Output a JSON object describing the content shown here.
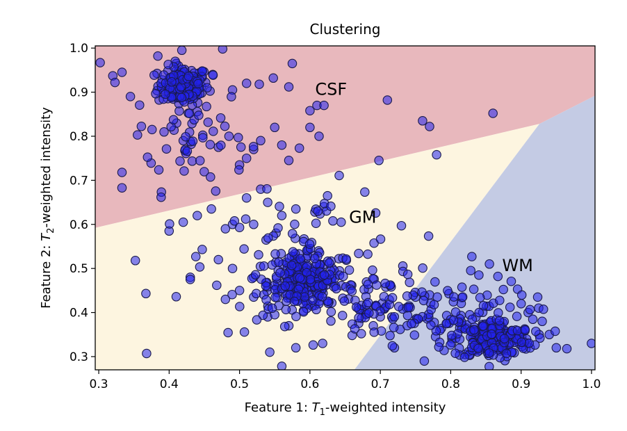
{
  "chart_data": {
    "type": "scatter",
    "title": "Clustering",
    "xlabel": {
      "prefix": "Feature 1: ",
      "symbol": "T",
      "sub": "1",
      "suffix": "-weighted intensity"
    },
    "ylabel": {
      "prefix": "Feature 2: ",
      "symbol": "T",
      "sub": "2",
      "suffix": "-weighted intensity"
    },
    "xlim": [
      0.295,
      1.005
    ],
    "ylim": [
      0.27,
      1.005
    ],
    "xticks": [
      "0.3",
      "0.4",
      "0.5",
      "0.6",
      "0.7",
      "0.8",
      "0.9",
      "1.0"
    ],
    "yticks": [
      "0.3",
      "0.4",
      "0.5",
      "0.6",
      "0.7",
      "0.8",
      "0.9",
      "1.0"
    ],
    "grid": false,
    "regions": [
      {
        "label": "CSF",
        "color": "#e8b8bd",
        "label_at": [
          0.63,
          0.905
        ],
        "polygon": [
          [
            0.295,
            0.592
          ],
          [
            0.926,
            0.828
          ],
          [
            1.005,
            0.892
          ],
          [
            1.005,
            1.005
          ],
          [
            0.295,
            1.005
          ]
        ]
      },
      {
        "label": "GM",
        "color": "#fdf5e0",
        "label_at": [
          0.675,
          0.615
        ],
        "polygon": [
          [
            0.295,
            0.27
          ],
          [
            0.663,
            0.27
          ],
          [
            0.926,
            0.828
          ],
          [
            0.295,
            0.592
          ]
        ]
      },
      {
        "label": "WM",
        "color": "#c4cbe4",
        "label_at": [
          0.895,
          0.505
        ],
        "polygon": [
          [
            0.663,
            0.27
          ],
          [
            1.005,
            0.27
          ],
          [
            1.005,
            0.892
          ],
          [
            0.926,
            0.828
          ]
        ]
      }
    ],
    "point_style": {
      "fill": "#2222ee",
      "fill_opacity": 0.55,
      "stroke": "#1a1a4a"
    },
    "clusters": [
      {
        "cx": 0.42,
        "cy": 0.915,
        "sx": 0.018,
        "sy": 0.022,
        "n": 160
      },
      {
        "cx": 0.43,
        "cy": 0.8,
        "sx": 0.04,
        "sy": 0.06,
        "n": 55
      },
      {
        "cx": 0.59,
        "cy": 0.47,
        "sx": 0.025,
        "sy": 0.03,
        "n": 230
      },
      {
        "cx": 0.6,
        "cy": 0.52,
        "sx": 0.07,
        "sy": 0.08,
        "n": 90
      },
      {
        "cx": 0.86,
        "cy": 0.34,
        "sx": 0.028,
        "sy": 0.022,
        "n": 200
      },
      {
        "cx": 0.79,
        "cy": 0.39,
        "sx": 0.06,
        "sy": 0.045,
        "n": 100
      },
      {
        "cx": 0.69,
        "cy": 0.42,
        "sx": 0.05,
        "sy": 0.04,
        "n": 70
      }
    ],
    "points": [
      [
        0.302,
        0.967
      ],
      [
        0.32,
        0.937
      ],
      [
        0.323,
        0.922
      ],
      [
        0.333,
        0.945
      ],
      [
        0.345,
        0.89
      ],
      [
        0.355,
        0.803
      ],
      [
        0.333,
        0.718
      ],
      [
        0.333,
        0.683
      ],
      [
        0.352,
        0.518
      ],
      [
        0.367,
        0.443
      ],
      [
        0.368,
        0.307
      ],
      [
        0.384,
        0.982
      ],
      [
        0.41,
        0.965
      ],
      [
        0.418,
        0.995
      ],
      [
        0.476,
        0.998
      ],
      [
        0.462,
        0.94
      ],
      [
        0.49,
        0.905
      ],
      [
        0.51,
        0.92
      ],
      [
        0.528,
        0.918
      ],
      [
        0.548,
        0.932
      ],
      [
        0.57,
        0.912
      ],
      [
        0.575,
        0.965
      ],
      [
        0.6,
        0.858
      ],
      [
        0.61,
        0.87
      ],
      [
        0.62,
        0.87
      ],
      [
        0.71,
        0.882
      ],
      [
        0.86,
        0.852
      ],
      [
        0.76,
        0.835
      ],
      [
        0.77,
        0.822
      ],
      [
        0.78,
        0.758
      ],
      [
        0.698,
        0.745
      ],
      [
        0.613,
        0.8
      ],
      [
        0.6,
        0.82
      ],
      [
        0.585,
        0.773
      ],
      [
        0.57,
        0.745
      ],
      [
        0.56,
        0.78
      ],
      [
        0.55,
        0.82
      ],
      [
        0.53,
        0.79
      ],
      [
        0.52,
        0.77
      ],
      [
        0.51,
        0.75
      ],
      [
        0.5,
        0.735
      ],
      [
        0.485,
        0.8
      ],
      [
        0.47,
        0.775
      ],
      [
        0.62,
        0.64
      ],
      [
        0.625,
        0.665
      ],
      [
        0.607,
        0.628
      ],
      [
        0.58,
        0.635
      ],
      [
        0.56,
        0.62
      ],
      [
        0.54,
        0.65
      ],
      [
        0.53,
        0.68
      ],
      [
        0.51,
        0.66
      ],
      [
        0.49,
        0.6
      ],
      [
        0.48,
        0.59
      ],
      [
        0.46,
        0.635
      ],
      [
        0.44,
        0.62
      ],
      [
        0.42,
        0.605
      ],
      [
        0.4,
        0.585
      ],
      [
        0.447,
        0.543
      ],
      [
        0.43,
        0.48
      ],
      [
        0.43,
        0.475
      ],
      [
        0.41,
        0.436
      ],
      [
        0.5,
        0.593
      ],
      [
        0.52,
        0.6
      ],
      [
        0.73,
        0.597
      ],
      [
        0.618,
        0.33
      ],
      [
        0.58,
        0.32
      ],
      [
        0.56,
        0.278
      ],
      [
        0.543,
        0.31
      ],
      [
        0.66,
        0.348
      ],
      [
        0.673,
        0.352
      ],
      [
        0.72,
        0.32
      ],
      [
        0.7,
        0.39
      ],
      [
        0.69,
        0.37
      ],
      [
        0.75,
        0.435
      ],
      [
        0.77,
        0.44
      ],
      [
        0.867,
        0.482
      ],
      [
        0.84,
        0.485
      ],
      [
        0.83,
        0.527
      ],
      [
        0.855,
        0.51
      ],
      [
        0.895,
        0.453
      ],
      [
        0.9,
        0.42
      ],
      [
        0.925,
        0.41
      ],
      [
        0.94,
        0.35
      ],
      [
        0.95,
        0.32
      ],
      [
        0.965,
        0.318
      ],
      [
        1.0,
        0.33
      ],
      [
        0.93,
        0.38
      ],
      [
        0.91,
        0.4
      ],
      [
        0.47,
        0.52
      ],
      [
        0.49,
        0.5
      ],
      [
        0.52,
        0.48
      ],
      [
        0.5,
        0.45
      ],
      [
        0.48,
        0.43
      ],
      [
        0.52,
        0.435
      ],
      [
        0.54,
        0.39
      ],
      [
        0.55,
        0.395
      ],
      [
        0.57,
        0.37
      ]
    ]
  }
}
